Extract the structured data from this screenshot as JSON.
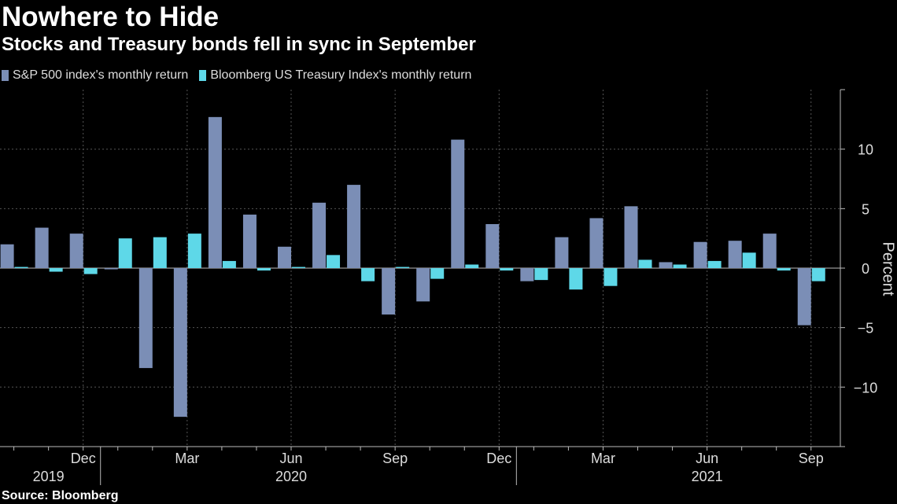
{
  "header": {
    "title": "Nowhere to Hide",
    "subtitle": "Stocks and Treasury bonds fell in sync in September"
  },
  "legend": [
    {
      "label": "S&P 500 index's monthly return",
      "color": "#7b8eb6"
    },
    {
      "label": "Bloomberg US Treasury Index's monthly return",
      "color": "#5ed8e8"
    }
  ],
  "source": "Source: Bloomberg",
  "chart_data": {
    "type": "bar",
    "categories": [
      "Oct 2019",
      "Nov 2019",
      "Dec 2019",
      "Jan 2020",
      "Feb 2020",
      "Mar 2020",
      "Apr 2020",
      "May 2020",
      "Jun 2020",
      "Jul 2020",
      "Aug 2020",
      "Sep 2020",
      "Oct 2020",
      "Nov 2020",
      "Dec 2020",
      "Jan 2021",
      "Feb 2021",
      "Mar 2021",
      "Apr 2021",
      "May 2021",
      "Jun 2021",
      "Jul 2021",
      "Aug 2021",
      "Sep 2021"
    ],
    "series": [
      {
        "name": "S&P 500 index's monthly return",
        "values": [
          2.0,
          3.4,
          2.9,
          -0.1,
          -8.4,
          -12.5,
          12.7,
          4.5,
          1.8,
          5.5,
          7.0,
          -3.9,
          -2.8,
          10.8,
          3.7,
          -1.1,
          2.6,
          4.2,
          5.2,
          0.5,
          2.2,
          2.3,
          2.9,
          -4.8
        ]
      },
      {
        "name": "Bloomberg US Treasury Index's monthly return",
        "values": [
          0.1,
          -0.3,
          -0.5,
          2.5,
          2.6,
          2.9,
          0.6,
          -0.2,
          0.1,
          1.1,
          -1.1,
          0.1,
          -0.9,
          0.3,
          -0.2,
          -1.0,
          -1.8,
          -1.5,
          0.7,
          0.3,
          0.6,
          1.3,
          -0.2,
          -1.1
        ]
      }
    ],
    "x_tick_labels": [
      "Dec",
      "Mar",
      "Jun",
      "Sep",
      "Dec",
      "Mar",
      "Jun",
      "Sep"
    ],
    "x_tick_months": [
      "Dec 2019",
      "Mar 2020",
      "Jun 2020",
      "Sep 2020",
      "Dec 2020",
      "Mar 2021",
      "Jun 2021",
      "Sep 2021"
    ],
    "year_labels": [
      "2019",
      "2020",
      "2021"
    ],
    "year_label_months": [
      "Nov 2019",
      "Jun 2020",
      "Jun 2021"
    ],
    "y_ticks": [
      10,
      5,
      0,
      -5,
      -10
    ],
    "ylabel": "Percent",
    "ylim": [
      -15,
      15
    ],
    "grid": true,
    "legend_position": "top-left"
  }
}
